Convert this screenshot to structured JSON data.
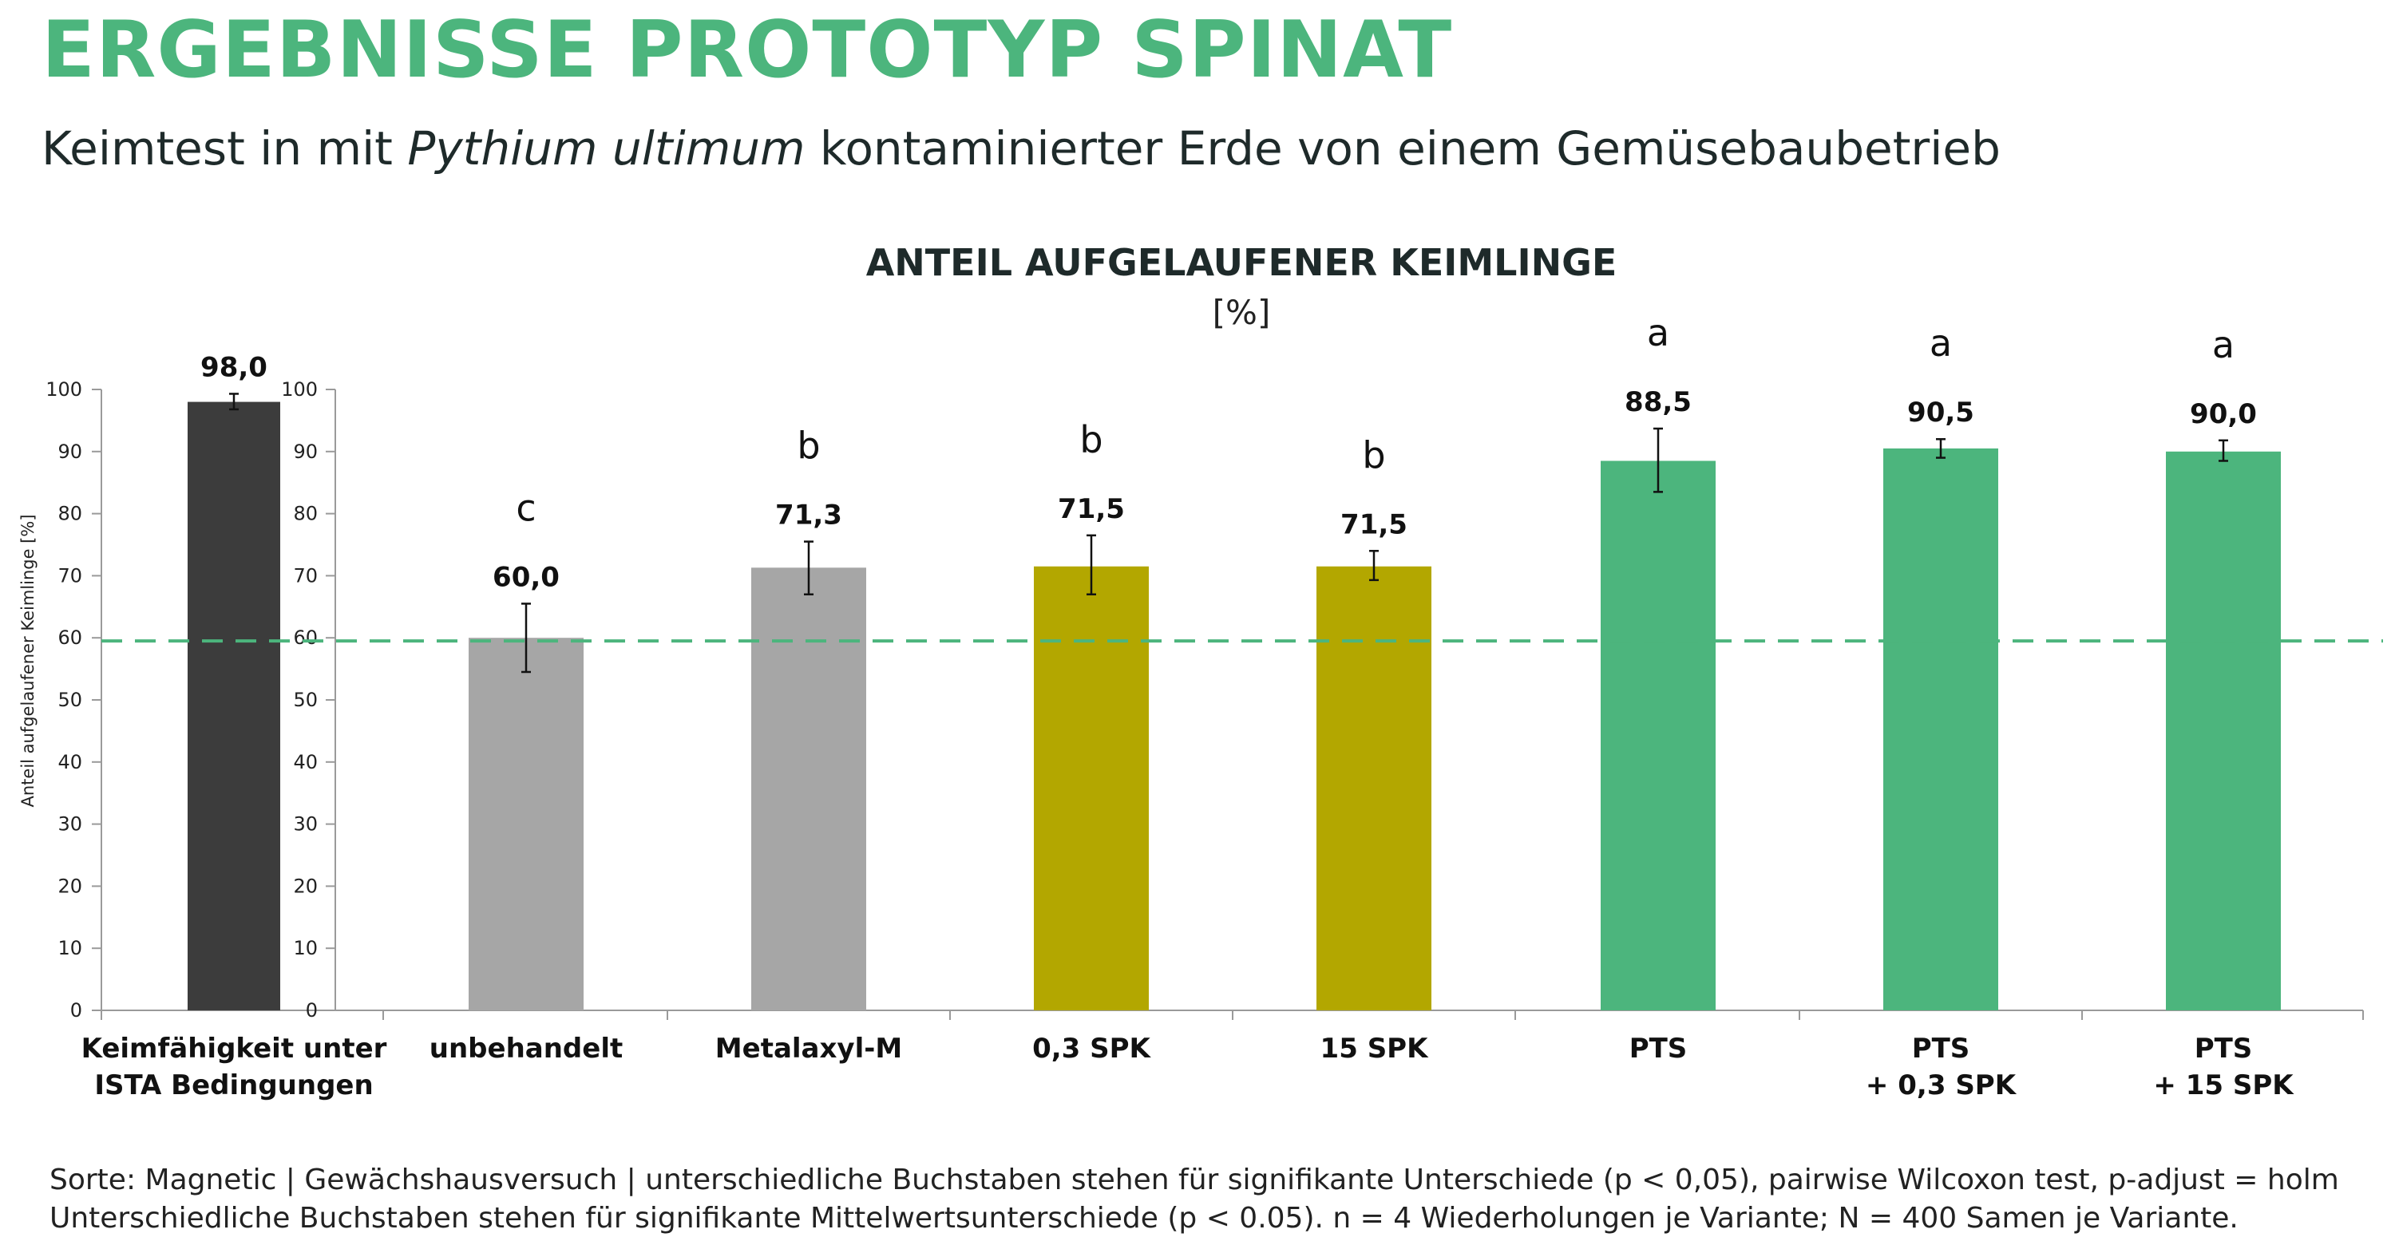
{
  "header": {
    "title": "ERGEBNISSE PROTOTYP SPINAT",
    "subtitle_pre": "Keimtest in mit ",
    "subtitle_italic": "Pythium ultimum",
    "subtitle_post": " kontaminierter Erde von einem Gemüsebaubetrieb"
  },
  "footnote": {
    "line1": "Sorte: Magnetic | Gewächshausversuch | unterschiedliche Buchstaben stehen für signifikante Unterschiede (p < 0,05), pairwise Wilcoxon test, p-adjust = holm",
    "line2": "Unterschiedliche Buchstaben stehen für signifikante Mittelwertsunterschiede (p < 0.05). n = 4 Wiederholungen je Variante; N = 400 Samen je Variante."
  },
  "chart_data": {
    "type": "bar",
    "title": "ANTEIL AUFGELAUFENER KEIMLINGE",
    "subtitle": "[%]",
    "ylabel": "Anteil aufgelaufener Keimlinge [%]",
    "ylim": [
      0,
      100
    ],
    "yticks": [
      "0",
      "10",
      "20",
      "30",
      "40",
      "50",
      "60",
      "70",
      "80",
      "90",
      "100"
    ],
    "reference_line": 59.5,
    "reference_color": "#4cb57d",
    "grid": false,
    "bars": [
      {
        "label_lines": [
          "Keimfähigkeit unter",
          "ISTA Bedingungen"
        ],
        "value": 98.0,
        "value_label": "98,0",
        "err_low": 96.8,
        "err_high": 99.3,
        "letter": "",
        "color": "#3c3c3c"
      },
      {
        "label_lines": [
          "unbehandelt"
        ],
        "value": 60.0,
        "value_label": "60,0",
        "err_low": 54.5,
        "err_high": 65.5,
        "letter": "c",
        "color": "#a6a6a6"
      },
      {
        "label_lines": [
          "Metalaxyl-M"
        ],
        "value": 71.3,
        "value_label": "71,3",
        "err_low": 67.0,
        "err_high": 75.5,
        "letter": "b",
        "color": "#a6a6a6"
      },
      {
        "label_lines": [
          "0,3 SPK"
        ],
        "value": 71.5,
        "value_label": "71,5",
        "err_low": 67.0,
        "err_high": 76.5,
        "letter": "b",
        "color": "#b3a700"
      },
      {
        "label_lines": [
          "15 SPK"
        ],
        "value": 71.5,
        "value_label": "71,5",
        "err_low": 69.3,
        "err_high": 74.0,
        "letter": "b",
        "color": "#b3a700"
      },
      {
        "label_lines": [
          "PTS"
        ],
        "value": 88.5,
        "value_label": "88,5",
        "err_low": 83.5,
        "err_high": 93.7,
        "letter": "a",
        "color": "#4cb57d"
      },
      {
        "label_lines": [
          "PTS",
          "+ 0,3 SPK"
        ],
        "value": 90.5,
        "value_label": "90,5",
        "err_low": 89.0,
        "err_high": 92.0,
        "letter": "a",
        "color": "#4cb57d"
      },
      {
        "label_lines": [
          "PTS",
          "+ 15 SPK"
        ],
        "value": 90.0,
        "value_label": "90,0",
        "err_low": 88.5,
        "err_high": 91.8,
        "letter": "a",
        "color": "#4cb57d"
      }
    ]
  }
}
